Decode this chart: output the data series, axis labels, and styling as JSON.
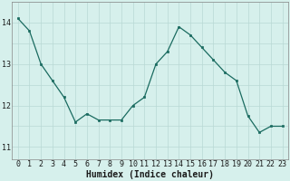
{
  "x": [
    0,
    1,
    2,
    3,
    4,
    5,
    6,
    7,
    8,
    9,
    10,
    11,
    12,
    13,
    14,
    15,
    16,
    17,
    18,
    19,
    20,
    21,
    22,
    23
  ],
  "y": [
    14.1,
    13.8,
    13.0,
    12.6,
    12.2,
    11.6,
    11.8,
    11.65,
    11.65,
    11.65,
    12.0,
    12.2,
    13.0,
    13.3,
    13.9,
    13.7,
    13.4,
    13.1,
    12.8,
    12.6,
    11.75,
    11.35,
    11.5,
    11.5
  ],
  "line_color": "#1a6b60",
  "marker_color": "#1a6b60",
  "bg_color": "#d6f0ec",
  "grid_color": "#b8d8d4",
  "xlabel": "Humidex (Indice chaleur)",
  "xlabel_fontsize": 7,
  "yticks": [
    11,
    12,
    13,
    14
  ],
  "ylim": [
    10.7,
    14.5
  ],
  "xlim": [
    -0.5,
    23.5
  ],
  "tick_fontsize": 6.0,
  "xlabel_pad": 1
}
